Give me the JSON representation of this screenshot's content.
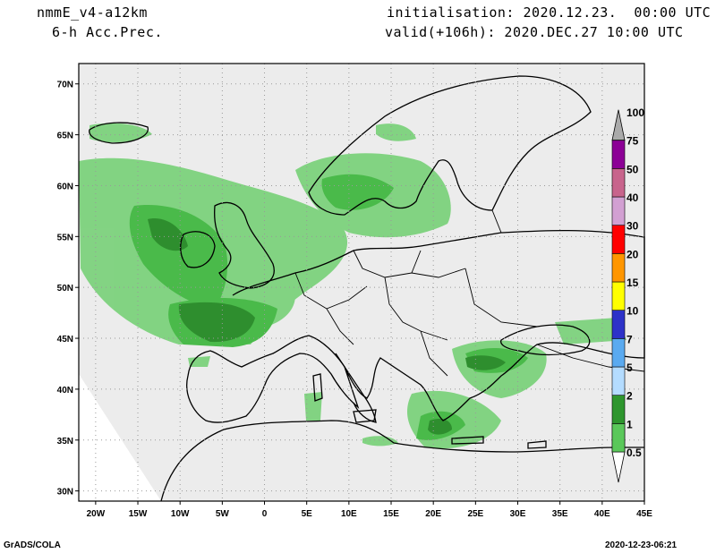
{
  "header": {
    "model": "nmmE_v4-a12km",
    "field": "6-h Acc.Prec.",
    "initialisation": "initialisation: 2020.12.23.  00:00 UTC",
    "valid": "valid(+106h): 2020.DEC.27 10:00 UTC"
  },
  "map": {
    "lat_labels": [
      "70N",
      "65N",
      "60N",
      "55N",
      "50N",
      "45N",
      "40N",
      "35N",
      "30N"
    ],
    "lon_labels": [
      "20W",
      "15W",
      "10W",
      "5W",
      "0",
      "5E",
      "10E",
      "15E",
      "20E",
      "25E",
      "30E",
      "35E",
      "40E",
      "45E"
    ],
    "lat_range": [
      29,
      72
    ],
    "lon_range": [
      -22,
      45
    ],
    "grid": true
  },
  "colorbar": {
    "levels": [
      "0.5",
      "1",
      "2",
      "5",
      "7",
      "10",
      "15",
      "20",
      "30",
      "40",
      "50",
      "75",
      "100"
    ],
    "colors": [
      "#b4f0b4",
      "#5ac85a",
      "#2e962e",
      "#b4dcff",
      "#5aaaf0",
      "#2d32c8",
      "#ffff00",
      "#ff9600",
      "#ff0000",
      "#d2a0d2",
      "#c8648c",
      "#8c0096",
      "#aaaaaa"
    ]
  },
  "footer": {
    "left": "GrADS/COLA",
    "right": "2020-12-23-06:21"
  }
}
